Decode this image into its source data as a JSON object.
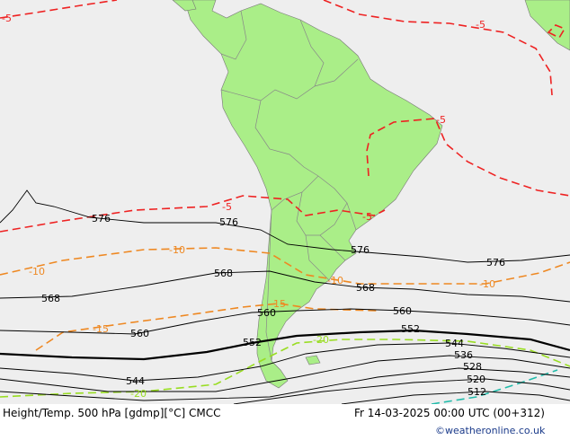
{
  "footer": {
    "title": "Height/Temp. 500 hPa [gdmp][°C] CMCC",
    "date": "Fr 14-03-2025 00:00 UTC (00+312)",
    "credit": "©weatheronline.co.uk"
  },
  "colors": {
    "ocean": "#eeeeee",
    "land": "#aaee88",
    "border": "#888888",
    "height_contour": "#000000",
    "temp_warm": "#ee2222",
    "temp_mid": "#ee8822",
    "temp_cold": "#99dd22",
    "temp_colder": "#22bbaa"
  },
  "height_labels": [
    "576",
    "576",
    "576",
    "576",
    "568",
    "568",
    "568",
    "560",
    "560",
    "560",
    "552",
    "552",
    "552",
    "544",
    "544",
    "536",
    "528",
    "520",
    "512"
  ],
  "temp_labels": [
    "-5",
    "-5",
    "-5",
    "-5",
    "-5",
    "-10",
    "-10",
    "-10",
    "-10",
    "-15",
    "-15",
    "-20",
    "-20"
  ]
}
